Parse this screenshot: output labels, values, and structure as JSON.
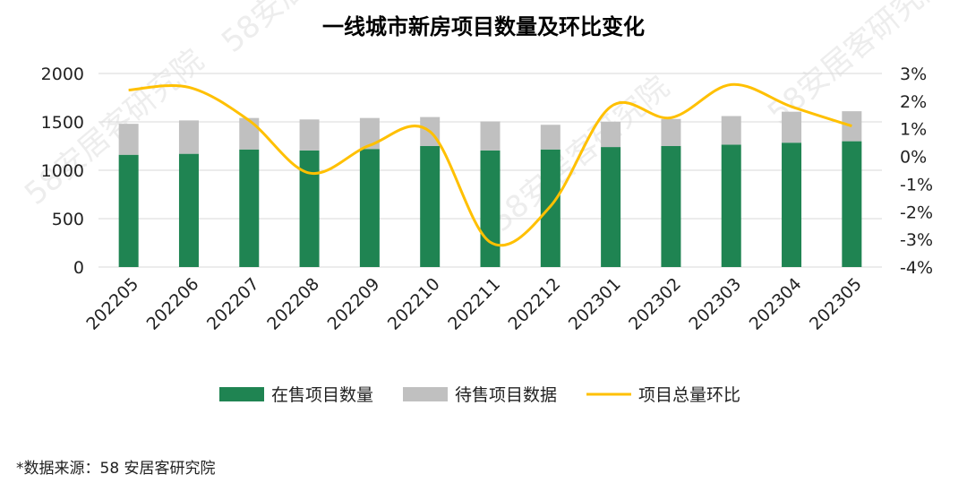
{
  "chart_data": {
    "type": "bar",
    "title": "一线城市新房项目数量及环比变化",
    "categories": [
      "202205",
      "202206",
      "202207",
      "202208",
      "202209",
      "202210",
      "202211",
      "202212",
      "202301",
      "202302",
      "202303",
      "202304",
      "202305"
    ],
    "series": [
      {
        "name": "在售项目数量",
        "kind": "bar",
        "stack": "s",
        "color": "#1f8452",
        "values": [
          1160,
          1170,
          1215,
          1205,
          1220,
          1250,
          1205,
          1215,
          1240,
          1250,
          1265,
          1285,
          1300
        ]
      },
      {
        "name": "待售项目数据",
        "kind": "bar",
        "stack": "s",
        "color": "#c0c0c0",
        "values": [
          320,
          345,
          325,
          320,
          320,
          300,
          300,
          255,
          260,
          280,
          295,
          320,
          310
        ]
      },
      {
        "name": "项目总量环比",
        "kind": "line",
        "axis": "right",
        "color": "#ffc000",
        "values": [
          2.4,
          2.5,
          1.3,
          -0.6,
          0.4,
          0.9,
          -3.1,
          -1.8,
          1.8,
          1.4,
          2.6,
          1.8,
          1.1
        ]
      }
    ],
    "y_left": {
      "min": 0,
      "max": 2000,
      "ticks": [
        0,
        500,
        1000,
        1500,
        2000
      ]
    },
    "y_right": {
      "min": -4,
      "max": 3,
      "ticks": [
        "-4%",
        "-3%",
        "-2%",
        "-1%",
        "0%",
        "1%",
        "2%",
        "3%"
      ]
    },
    "grid": true,
    "legend_position": "bottom"
  },
  "source_note": "*数据来源：58 安居客研究院",
  "watermark": "58安居客研究院"
}
